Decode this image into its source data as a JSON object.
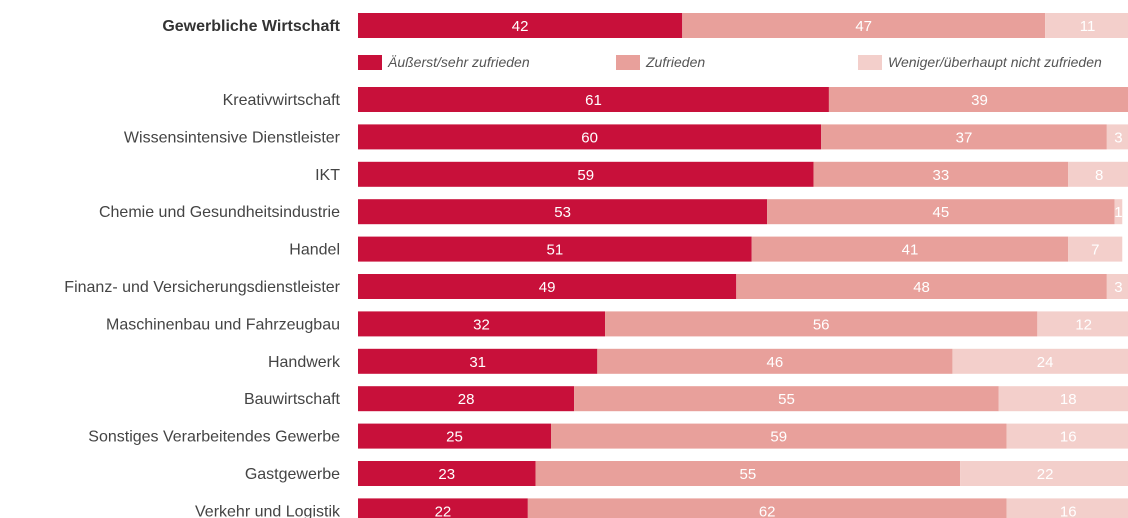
{
  "chart_data": {
    "type": "bar",
    "orientation": "horizontal",
    "stacked": true,
    "xlim": [
      0,
      100
    ],
    "categories": [
      "Gewerbliche Wirtschaft",
      "Kreativwirtschaft",
      "Wissensintensive Dienstleister",
      "IKT",
      "Chemie und Gesundheitsindustrie",
      "Handel",
      "Finanz- und Versicherungsdienstleister",
      "Maschinenbau und Fahrzeugbau",
      "Handwerk",
      "Bauwirtschaft",
      "Sonstiges Verarbeitendes Gewerbe",
      "Gastgewerbe",
      "Verkehr und Logistik"
    ],
    "highlight_category": "Gewerbliche Wirtschaft",
    "series": [
      {
        "name": "Äußerst/sehr zufrieden",
        "color": "#c8103a",
        "values": [
          42,
          61,
          60,
          59,
          53,
          51,
          49,
          32,
          31,
          28,
          25,
          23,
          22
        ]
      },
      {
        "name": "Zufrieden",
        "color": "#e8a09b",
        "values": [
          47,
          39,
          37,
          33,
          45,
          41,
          48,
          56,
          46,
          55,
          59,
          55,
          62
        ]
      },
      {
        "name": "Weniger/überhaupt nicht zufrieden",
        "color": "#f3cfcb",
        "values": [
          11,
          0,
          3,
          8,
          1,
          7,
          3,
          12,
          24,
          18,
          16,
          22,
          16
        ]
      }
    ],
    "legend_position": "below first bar",
    "grid": false
  }
}
